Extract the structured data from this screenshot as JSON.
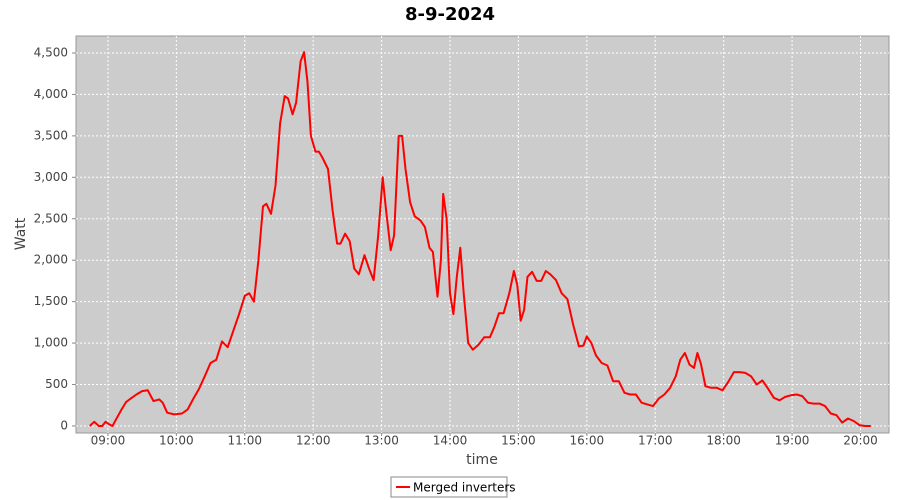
{
  "chart_data": {
    "type": "line",
    "title": "8-9-2024",
    "x_label": "time",
    "y_label": "Watt",
    "x": [
      "08:44",
      "08:48",
      "08:52",
      "08:55",
      "08:58",
      "09:01",
      "09:04",
      "09:08",
      "09:12",
      "09:16",
      "09:20",
      "09:25",
      "09:30",
      "09:35",
      "09:40",
      "09:45",
      "09:48",
      "09:52",
      "09:58",
      "10:05",
      "10:10",
      "10:15",
      "10:20",
      "10:25",
      "10:30",
      "10:35",
      "10:40",
      "10:45",
      "10:50",
      "10:55",
      "11:00",
      "11:04",
      "11:08",
      "11:12",
      "11:16",
      "11:19",
      "11:23",
      "11:27",
      "11:31",
      "11:35",
      "11:38",
      "11:42",
      "11:45",
      "11:49",
      "11:52",
      "11:55",
      "11:58",
      "12:02",
      "12:05",
      "12:08",
      "12:13",
      "12:17",
      "12:21",
      "12:24",
      "12:28",
      "12:32",
      "12:36",
      "12:40",
      "12:45",
      "12:49",
      "12:53",
      "12:57",
      "13:01",
      "13:04",
      "13:08",
      "13:11",
      "13:15",
      "13:18",
      "13:21",
      "13:25",
      "13:29",
      "13:34",
      "13:38",
      "13:42",
      "13:45",
      "13:49",
      "13:52",
      "13:54",
      "13:57",
      "14:00",
      "14:03",
      "14:06",
      "14:09",
      "14:12",
      "14:16",
      "14:20",
      "14:25",
      "14:30",
      "14:35",
      "14:39",
      "14:43",
      "14:47",
      "14:52",
      "14:56",
      "14:59",
      "15:02",
      "15:05",
      "15:08",
      "15:12",
      "15:16",
      "15:20",
      "15:24",
      "15:28",
      "15:33",
      "15:38",
      "15:43",
      "15:48",
      "15:53",
      "15:57",
      "16:00",
      "16:04",
      "16:08",
      "16:13",
      "16:18",
      "16:23",
      "16:28",
      "16:33",
      "16:38",
      "16:43",
      "16:48",
      "16:53",
      "16:58",
      "17:03",
      "17:08",
      "17:13",
      "17:18",
      "17:22",
      "17:26",
      "17:30",
      "17:34",
      "17:37",
      "17:40",
      "17:44",
      "17:49",
      "17:54",
      "17:59",
      "18:04",
      "18:09",
      "18:14",
      "18:19",
      "18:24",
      "18:29",
      "18:34",
      "18:39",
      "18:44",
      "18:49",
      "18:54",
      "18:59",
      "19:04",
      "19:09",
      "19:14",
      "19:19",
      "19:24",
      "19:29",
      "19:34",
      "19:39",
      "19:44",
      "19:49",
      "19:54",
      "19:59",
      "20:04",
      "20:09"
    ],
    "series": [
      {
        "name": "Merged inverters",
        "color": "#ff0000",
        "values": [
          0,
          50,
          0,
          0,
          50,
          20,
          0,
          100,
          200,
          290,
          330,
          380,
          420,
          430,
          300,
          320,
          280,
          160,
          140,
          150,
          200,
          330,
          450,
          600,
          760,
          800,
          1020,
          950,
          1150,
          1350,
          1570,
          1600,
          1500,
          2000,
          2650,
          2680,
          2560,
          2900,
          3650,
          3980,
          3950,
          3760,
          3900,
          4400,
          4510,
          4150,
          3500,
          3310,
          3310,
          3240,
          3100,
          2600,
          2200,
          2200,
          2320,
          2230,
          1900,
          1830,
          2060,
          1900,
          1760,
          2300,
          3000,
          2600,
          2120,
          2300,
          3500,
          3500,
          3100,
          2700,
          2530,
          2480,
          2400,
          2150,
          2100,
          1560,
          2000,
          2800,
          2500,
          1600,
          1350,
          1800,
          2150,
          1600,
          1000,
          920,
          980,
          1070,
          1070,
          1200,
          1360,
          1360,
          1600,
          1870,
          1700,
          1270,
          1400,
          1800,
          1860,
          1750,
          1750,
          1870,
          1830,
          1760,
          1600,
          1530,
          1220,
          960,
          970,
          1080,
          1000,
          850,
          760,
          730,
          540,
          540,
          400,
          380,
          380,
          280,
          260,
          240,
          330,
          380,
          460,
          600,
          800,
          880,
          740,
          700,
          880,
          750,
          480,
          460,
          460,
          430,
          530,
          650,
          650,
          640,
          600,
          500,
          550,
          450,
          340,
          310,
          350,
          370,
          380,
          360,
          280,
          270,
          270,
          240,
          150,
          130,
          40,
          90,
          60,
          10,
          0,
          0
        ]
      }
    ],
    "xlim": [
      "08:32",
      "20:25"
    ],
    "xticks": [
      "09:00",
      "10:00",
      "11:00",
      "12:00",
      "13:00",
      "14:00",
      "15:00",
      "16:00",
      "17:00",
      "18:00",
      "19:00",
      "20:00"
    ],
    "ylim": [
      -85,
      4705
    ],
    "yticks": [
      0,
      500,
      {
        "value": 1000,
        "label": "1,000"
      },
      {
        "value": 1500,
        "label": "1,500"
      },
      {
        "value": 2000,
        "label": "2,000"
      },
      {
        "value": 2500,
        "label": "2,500"
      },
      {
        "value": 3000,
        "label": "3,000"
      },
      {
        "value": 3500,
        "label": "3,500"
      },
      {
        "value": 4000,
        "label": "4,000"
      },
      {
        "value": 4500,
        "label": "4,500"
      }
    ],
    "grid": true,
    "legend": "bottom"
  }
}
